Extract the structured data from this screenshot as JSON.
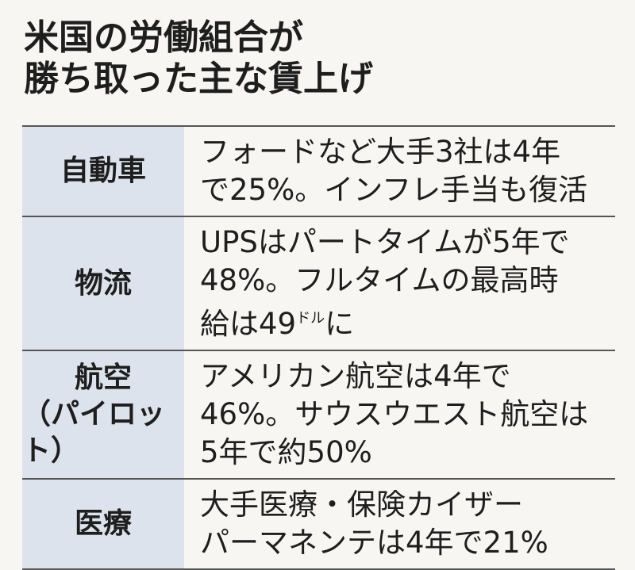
{
  "header": {
    "title": [
      "米国の労働組合が",
      "勝ち取った主な賃上げ"
    ]
  },
  "table": {
    "rows": [
      {
        "label": [
          "自動車"
        ],
        "text": [
          [
            "フォードなど大手3社は4年"
          ],
          [
            "で25%。インフレ手当も復活"
          ]
        ]
      },
      {
        "label": [
          "物流"
        ],
        "text": [
          [
            "UPSはパートタイムが5年で"
          ],
          [
            "48%。フルタイムの最高時"
          ],
          [
            "給は49",
            "ドル",
            "に"
          ]
        ]
      },
      {
        "label": [
          "航空",
          "（パイロット）"
        ],
        "text": [
          [
            "アメリカン航空は4年で"
          ],
          [
            "46%。サウスウエスト航空は"
          ],
          [
            "5年で約50%"
          ]
        ]
      },
      {
        "label": [
          "医療"
        ],
        "text": [
          [
            "大手医療・保険カイザー"
          ],
          [
            "パーマネンテは4年で21%"
          ]
        ]
      }
    ]
  }
}
